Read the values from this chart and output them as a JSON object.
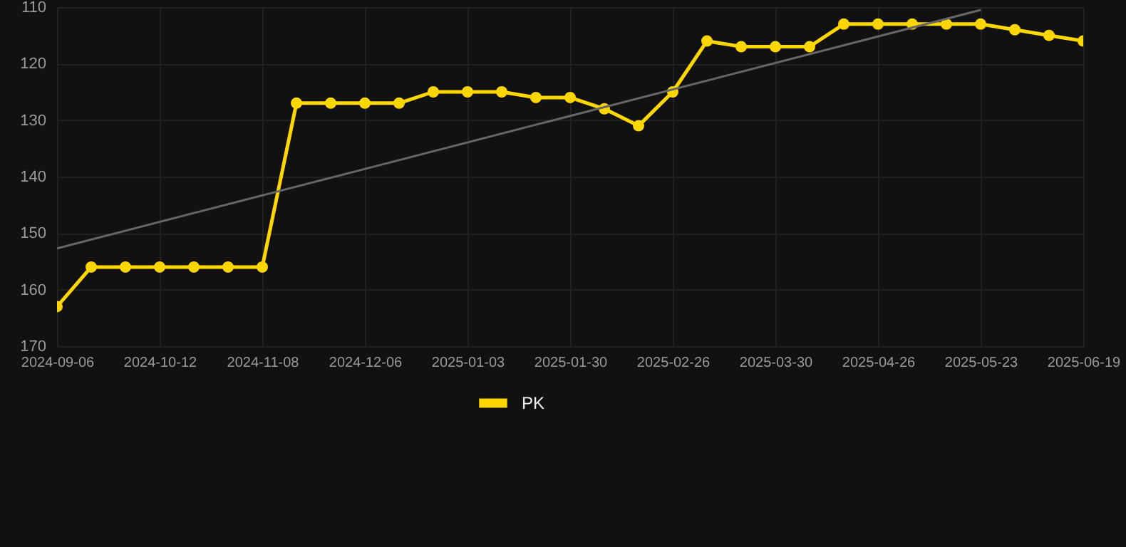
{
  "chart_data": {
    "type": "line",
    "categories": [
      "2024-09-06",
      null,
      null,
      "2024-10-12",
      null,
      null,
      "2024-11-08",
      null,
      null,
      "2024-12-06",
      null,
      null,
      "2025-01-03",
      null,
      null,
      "2025-01-30",
      null,
      null,
      "2025-02-26",
      null,
      null,
      "2025-03-30",
      null,
      null,
      "2025-04-26",
      null,
      null,
      "2025-05-23",
      null,
      null,
      "2025-06-19"
    ],
    "series": [
      {
        "name": "PK",
        "color": "#ffd700",
        "values": [
          163,
          156,
          156,
          156,
          156,
          156,
          156,
          127,
          127,
          127,
          127,
          125,
          125,
          125,
          126,
          126,
          128,
          131,
          125,
          116,
          117,
          117,
          117,
          113,
          113,
          113,
          113,
          113,
          114,
          115,
          116
        ]
      },
      {
        "type": "line",
        "color": "#666666",
        "marker": "none",
        "values": [
          152.7,
          null,
          null,
          null,
          null,
          null,
          null,
          null,
          null,
          null,
          null,
          null,
          null,
          null,
          null,
          null,
          null,
          null,
          null,
          null,
          null,
          null,
          null,
          null,
          null,
          null,
          null,
          110.5,
          null,
          null,
          null
        ]
      }
    ],
    "ylim": [
      170,
      110
    ],
    "yticks": [
      110,
      120,
      130,
      140,
      150,
      160,
      170
    ],
    "grid": true,
    "legend": "bottom",
    "marker": "circle",
    "line_style": "solid"
  }
}
